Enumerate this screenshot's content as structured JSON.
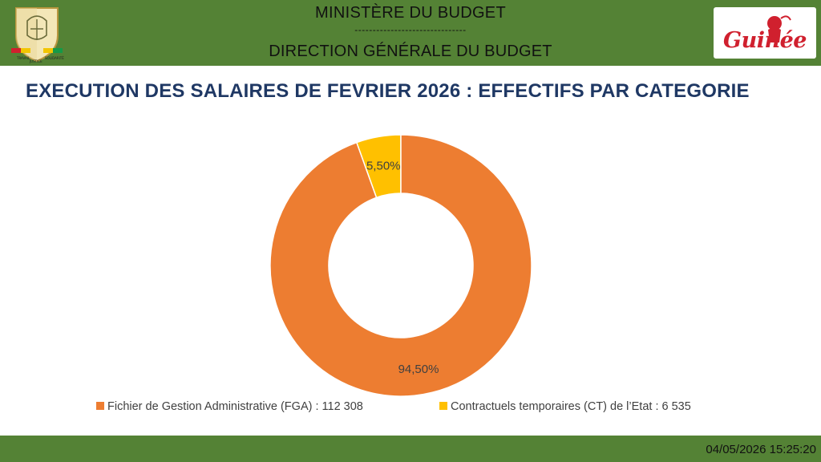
{
  "header": {
    "ministry": "MINISTÈRE DU BUDGET",
    "separator": "-------------------------------",
    "direction": "DIRECTION GÉNÉRALE DU BUDGET",
    "emblem_text": [
      "TRAVAIL",
      "JUSTICE",
      "SOLIDARITÉ"
    ],
    "logo_text": "Guinée"
  },
  "colors": {
    "band": "#548235",
    "title": "#1f3864",
    "fga": "#ed7d31",
    "ct": "#ffc000"
  },
  "chart_data": {
    "type": "pie",
    "variant": "donut",
    "title": "EXECUTION DES SALAIRES DE FEVRIER 2026 : EFFECTIFS PAR CATEGORIE",
    "series": [
      {
        "name": "Fichier de Gestion Administrative (FGA) : 112 308",
        "value": 94.5,
        "label": "94,50%",
        "color": "#ed7d31"
      },
      {
        "name": "Contractuels temporaires (CT) de l’Etat : 6 535",
        "value": 5.5,
        "label": "5,50%",
        "color": "#ffc000"
      }
    ],
    "legend_position": "bottom"
  },
  "footer": {
    "timestamp": "04/05/2026 15:25:20"
  }
}
